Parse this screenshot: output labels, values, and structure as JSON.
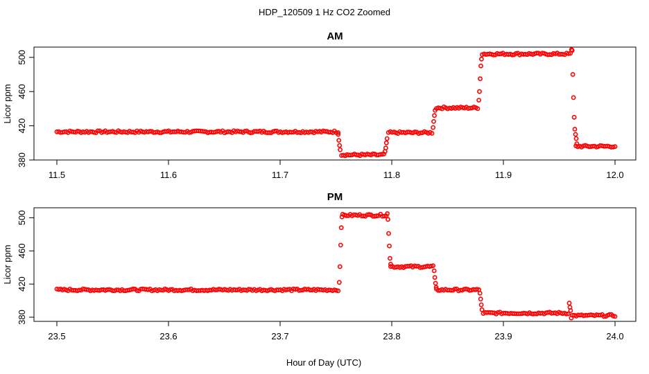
{
  "page_title": "HDP_120509  1 Hz CO2 Zoomed",
  "xlabel": "Hour of Day (UTC)",
  "colors": {
    "points": "#ff0000",
    "axes": "#000000",
    "background": "#ffffff"
  },
  "chart_data": [
    {
      "type": "scatter",
      "title": "AM",
      "ylabel": "Licor ppm",
      "xlim": [
        11.5,
        12.0
      ],
      "ylim": [
        380,
        512
      ],
      "x_ticks": [
        "11.5",
        "11.6",
        "11.7",
        "11.8",
        "11.9",
        "12.0"
      ],
      "y_ticks": [
        "380",
        "420",
        "460",
        "500"
      ],
      "series": [
        {
          "levels": [
            {
              "x_start": 11.5,
              "x_end": 11.752,
              "y": 413
            },
            {
              "x_start": 11.755,
              "x_end": 11.793,
              "y": 386
            },
            {
              "x_start": 11.797,
              "x_end": 11.836,
              "y": 412
            },
            {
              "x_start": 11.84,
              "x_end": 11.877,
              "y": 441
            },
            {
              "x_start": 11.881,
              "x_end": 11.96,
              "y": 504
            },
            {
              "x_start": 11.965,
              "x_end": 12.0,
              "y": 396
            }
          ],
          "transitions": [
            {
              "x": 11.752,
              "y": [
                410,
                403,
                397,
                392
              ]
            },
            {
              "x": 11.794,
              "y": [
                390,
                394,
                400,
                405
              ]
            },
            {
              "x": 11.837,
              "y": [
                418,
                425,
                432,
                438
              ]
            },
            {
              "x": 11.878,
              "y": [
                450,
                460,
                475,
                490,
                498
              ]
            },
            {
              "x": 11.961,
              "y": [
                509,
                508,
                480,
                453,
                430,
                416,
                410,
                405,
                399
              ]
            }
          ]
        }
      ]
    },
    {
      "type": "scatter",
      "title": "PM",
      "ylabel": "Licor ppm",
      "xlim": [
        23.5,
        24.0
      ],
      "ylim": [
        375,
        512
      ],
      "x_ticks": [
        "23.5",
        "23.6",
        "23.7",
        "23.8",
        "23.9",
        "24.0"
      ],
      "y_ticks": [
        "380",
        "420",
        "460",
        "500"
      ],
      "series": [
        {
          "levels": [
            {
              "x_start": 23.5,
              "x_end": 23.752,
              "y": 413
            },
            {
              "x_start": 23.756,
              "x_end": 23.795,
              "y": 503
            },
            {
              "x_start": 23.799,
              "x_end": 23.837,
              "y": 441
            },
            {
              "x_start": 23.84,
              "x_end": 23.878,
              "y": 413
            },
            {
              "x_start": 23.882,
              "x_end": 23.958,
              "y": 385
            },
            {
              "x_start": 23.962,
              "x_end": 24.0,
              "y": 382
            }
          ],
          "transitions": [
            {
              "x": 23.753,
              "y": [
                422,
                441,
                467,
                488,
                501
              ]
            },
            {
              "x": 23.796,
              "y": [
                505,
                498,
                481,
                466,
                451,
                444
              ]
            },
            {
              "x": 23.838,
              "y": [
                436,
                428,
                421,
                416
              ]
            },
            {
              "x": 23.879,
              "y": [
                409,
                402,
                395,
                389
              ]
            },
            {
              "x": 23.959,
              "y": [
                397,
                392,
                388,
                379
              ]
            }
          ]
        }
      ]
    }
  ]
}
